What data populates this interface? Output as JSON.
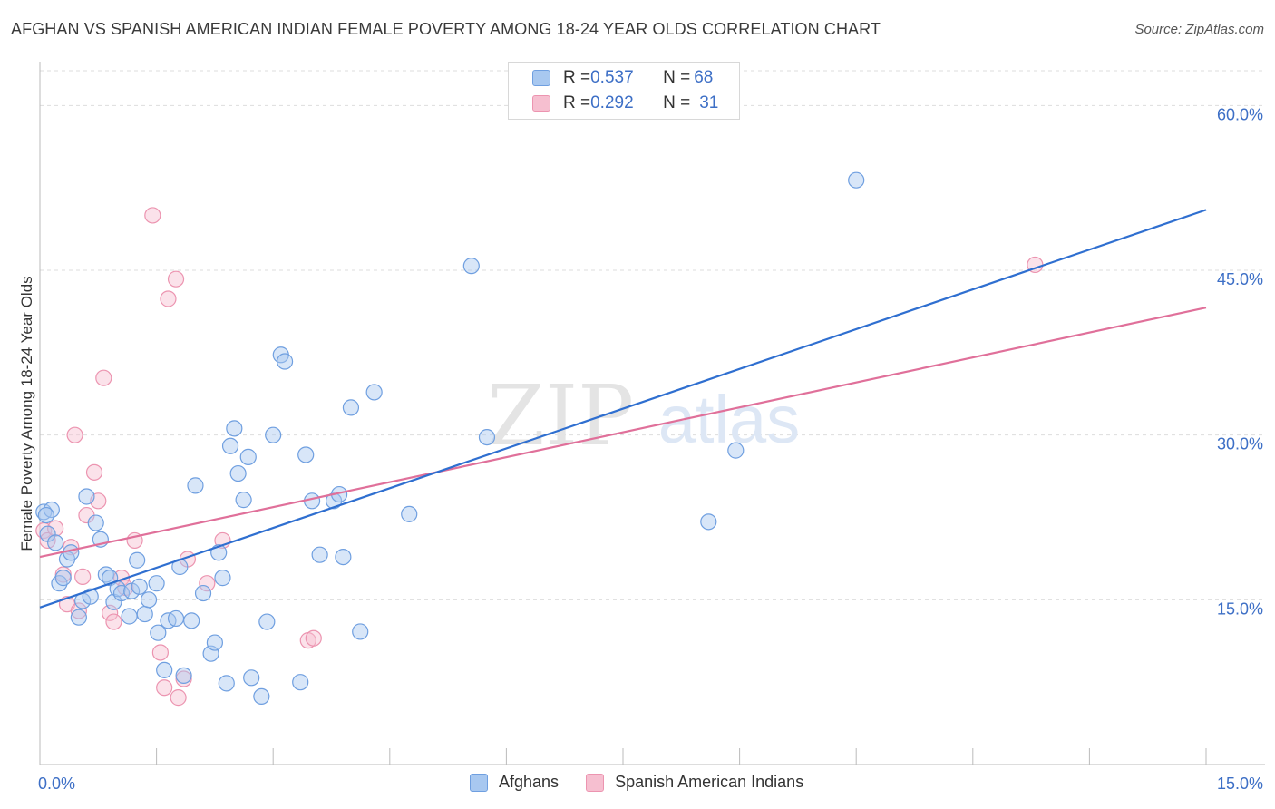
{
  "header": {
    "title": "AFGHAN VS SPANISH AMERICAN INDIAN FEMALE POVERTY AMONG 18-24 YEAR OLDS CORRELATION CHART",
    "source": "Source: ZipAtlas.com"
  },
  "legend": {
    "rows": [
      {
        "r_label": "R = ",
        "r_value": "0.537",
        "n_label": "N = ",
        "n_value": "68"
      },
      {
        "r_label": "R = ",
        "r_value": "0.292",
        "n_label": "N = ",
        "n_value": "31"
      }
    ],
    "bottom": [
      "Afghans",
      "Spanish American Indians"
    ]
  },
  "watermark": {
    "part1": "ZIP",
    "part2": "atlas"
  },
  "colors": {
    "afghan_fill": "#a8c8f0",
    "afghan_stroke": "#6f9fe0",
    "afghan_line": "#2f6fd0",
    "sai_fill": "#f6bfd0",
    "sai_stroke": "#ec94b0",
    "sai_line": "#e0709a",
    "tick_text": "#3d6fc6",
    "grid": "#dddddd"
  },
  "chart_data": {
    "type": "scatter",
    "title": "AFGHAN VS SPANISH AMERICAN INDIAN FEMALE POVERTY AMONG 18-24 YEAR OLDS CORRELATION CHART",
    "xlabel": "",
    "ylabel": "Female Poverty Among 18-24 Year Olds",
    "xlim": [
      0,
      15
    ],
    "ylim": [
      0,
      63
    ],
    "x_tick_labels": [
      {
        "value": 0,
        "label": "0.0%"
      },
      {
        "value": 15,
        "label": "15.0%"
      }
    ],
    "y_tick_labels": [
      {
        "value": 15,
        "label": "15.0%"
      },
      {
        "value": 30,
        "label": "30.0%"
      },
      {
        "value": 45,
        "label": "45.0%"
      },
      {
        "value": 60,
        "label": "60.0%"
      }
    ],
    "y_gridlines": [
      15,
      30,
      45,
      60
    ],
    "series": [
      {
        "name": "Afghans",
        "R": 0.537,
        "N": 68,
        "trend": {
          "x0": 0,
          "y0": 14.3,
          "x1": 15,
          "y1": 50.5
        },
        "points": [
          [
            0.05,
            23.0
          ],
          [
            0.1,
            21.0
          ],
          [
            0.15,
            23.2
          ],
          [
            0.2,
            20.2
          ],
          [
            0.25,
            16.5
          ],
          [
            0.3,
            17.0
          ],
          [
            0.35,
            18.7
          ],
          [
            0.4,
            19.3
          ],
          [
            0.5,
            13.4
          ],
          [
            0.55,
            14.9
          ],
          [
            0.6,
            24.4
          ],
          [
            0.65,
            15.3
          ],
          [
            0.72,
            22.0
          ],
          [
            0.78,
            20.5
          ],
          [
            0.85,
            17.3
          ],
          [
            0.9,
            17.0
          ],
          [
            0.95,
            14.8
          ],
          [
            1.0,
            16.0
          ],
          [
            1.05,
            15.6
          ],
          [
            1.15,
            13.5
          ],
          [
            1.18,
            15.8
          ],
          [
            1.25,
            18.6
          ],
          [
            1.28,
            16.2
          ],
          [
            1.35,
            13.7
          ],
          [
            1.4,
            15.0
          ],
          [
            1.5,
            16.5
          ],
          [
            1.52,
            12.0
          ],
          [
            1.6,
            8.6
          ],
          [
            1.65,
            13.1
          ],
          [
            1.75,
            13.3
          ],
          [
            1.8,
            18.0
          ],
          [
            1.85,
            8.1
          ],
          [
            1.95,
            13.1
          ],
          [
            2.0,
            25.4
          ],
          [
            2.1,
            15.6
          ],
          [
            2.2,
            10.1
          ],
          [
            2.25,
            11.1
          ],
          [
            2.3,
            19.3
          ],
          [
            2.35,
            17.0
          ],
          [
            2.4,
            7.4
          ],
          [
            2.45,
            29.0
          ],
          [
            2.5,
            30.6
          ],
          [
            2.55,
            26.5
          ],
          [
            2.62,
            24.1
          ],
          [
            2.68,
            28.0
          ],
          [
            2.72,
            7.9
          ],
          [
            2.85,
            6.2
          ],
          [
            2.92,
            13.0
          ],
          [
            3.0,
            30.0
          ],
          [
            3.1,
            37.3
          ],
          [
            3.15,
            36.7
          ],
          [
            3.35,
            7.5
          ],
          [
            3.42,
            28.2
          ],
          [
            3.5,
            24.0
          ],
          [
            3.6,
            19.1
          ],
          [
            3.78,
            24.0
          ],
          [
            3.85,
            24.6
          ],
          [
            3.9,
            18.9
          ],
          [
            4.0,
            32.5
          ],
          [
            4.12,
            12.1
          ],
          [
            4.3,
            33.9
          ],
          [
            4.75,
            22.8
          ],
          [
            5.55,
            45.4
          ],
          [
            5.75,
            29.8
          ],
          [
            8.6,
            22.1
          ],
          [
            8.95,
            28.6
          ],
          [
            10.5,
            53.2
          ],
          [
            0.08,
            22.7
          ]
        ]
      },
      {
        "name": "Spanish American Indians",
        "R": 0.292,
        "N": 31,
        "trend": {
          "x0": 0,
          "y0": 18.9,
          "x1": 15,
          "y1": 41.6
        },
        "points": [
          [
            0.05,
            21.3
          ],
          [
            0.1,
            20.4
          ],
          [
            0.2,
            21.5
          ],
          [
            0.3,
            17.3
          ],
          [
            0.35,
            14.6
          ],
          [
            0.4,
            19.8
          ],
          [
            0.45,
            30.0
          ],
          [
            0.5,
            14.0
          ],
          [
            0.55,
            17.1
          ],
          [
            0.6,
            22.7
          ],
          [
            0.7,
            26.6
          ],
          [
            0.75,
            24.0
          ],
          [
            0.82,
            35.2
          ],
          [
            0.9,
            13.8
          ],
          [
            0.95,
            13.0
          ],
          [
            1.05,
            17.0
          ],
          [
            1.1,
            16.1
          ],
          [
            1.22,
            20.4
          ],
          [
            1.45,
            50.0
          ],
          [
            1.55,
            10.2
          ],
          [
            1.6,
            7.0
          ],
          [
            1.65,
            42.4
          ],
          [
            1.75,
            44.2
          ],
          [
            1.78,
            6.1
          ],
          [
            1.85,
            7.8
          ],
          [
            1.9,
            18.7
          ],
          [
            2.15,
            16.5
          ],
          [
            2.35,
            20.4
          ],
          [
            3.45,
            11.3
          ],
          [
            3.52,
            11.5
          ],
          [
            12.8,
            45.5
          ]
        ]
      }
    ]
  }
}
